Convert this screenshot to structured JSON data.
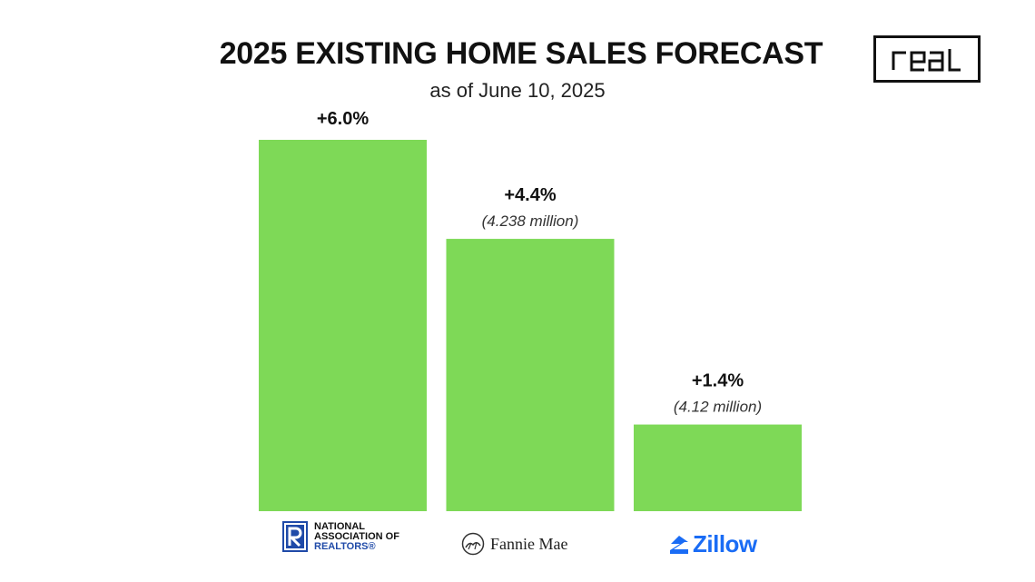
{
  "header": {
    "title": "2025 EXISTING HOME SALES FORECAST",
    "subtitle": "as of June 10, 2025",
    "brand_logo_text": "real"
  },
  "colors": {
    "bar": "#7ed957",
    "nar_blue": "#1f4aa8",
    "zillow_blue": "#1a6cf5"
  },
  "chart_data": {
    "type": "bar",
    "categories": [
      "National Association of Realtors",
      "Fannie Mae",
      "Zillow"
    ],
    "values": [
      6.0,
      4.4,
      1.4
    ],
    "value_labels": [
      "+6.0%",
      "+4.4%",
      "+1.4%"
    ],
    "notes": [
      "",
      "(4.238 million)",
      "(4.12 million)"
    ],
    "unit": "%",
    "ylim": [
      0,
      6.0
    ],
    "grid": false,
    "legend": "none",
    "title": "2025 EXISTING HOME SALES FORECAST",
    "subtitle": "as of June 10, 2025"
  },
  "logos": {
    "nar": {
      "line1": "NATIONAL",
      "line2": "ASSOCIATION OF",
      "line3": "REALTORS®",
      "icon": "realtor-r-icon"
    },
    "fannie": {
      "text": "Fannie Mae",
      "icon": "fannie-mae-house-icon"
    },
    "zillow": {
      "text": "Zillow",
      "icon": "zillow-z-icon"
    }
  }
}
